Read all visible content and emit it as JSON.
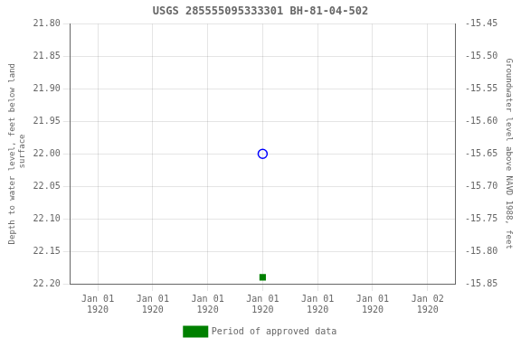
{
  "chart_data": {
    "type": "scatter",
    "title": "USGS 285555095333301 BH-81-04-502",
    "y_label": "Depth to water level, feet below land\n surface",
    "y2_label": "Groundwater level above NAVD 1988, feet",
    "categories": [
      "Jan 01\n1920",
      "Jan 01\n1920",
      "Jan 01\n1920",
      "Jan 01\n1920",
      "Jan 01\n1920",
      "Jan 01\n1920",
      "Jan 02\n1920"
    ],
    "series": [
      {
        "color": "blue",
        "marker": "open_circle",
        "values": [
          null,
          null,
          null,
          22.0,
          null,
          null,
          null
        ]
      },
      {
        "name": "Period of approved data",
        "color": "#008000",
        "marker": "square",
        "values": [
          null,
          null,
          null,
          22.19,
          null,
          null,
          null
        ]
      }
    ],
    "ylim": [
      22.2,
      21.8
    ],
    "yticks": [
      {
        "value": 21.8,
        "label": "21.80"
      },
      21.85,
      {
        "value": 21.9,
        "label": "21.90"
      },
      21.95,
      {
        "value": 22.0,
        "label": "22.00"
      },
      22.05,
      {
        "value": 22.1,
        "label": "22.10"
      },
      22.15,
      {
        "value": 22.2,
        "label": "22.20"
      }
    ],
    "y2lim": [
      -15.85,
      -15.45
    ],
    "y2ticks": [
      -15.45,
      {
        "value": -15.5,
        "label": "-15.50"
      },
      -15.55,
      {
        "value": -15.6,
        "label": "-15.60"
      },
      -15.65,
      {
        "value": -15.7,
        "label": "-15.70"
      },
      -15.75,
      {
        "value": -15.8,
        "label": "-15.80"
      },
      -15.85
    ],
    "grid": true,
    "legend": "bottom"
  }
}
